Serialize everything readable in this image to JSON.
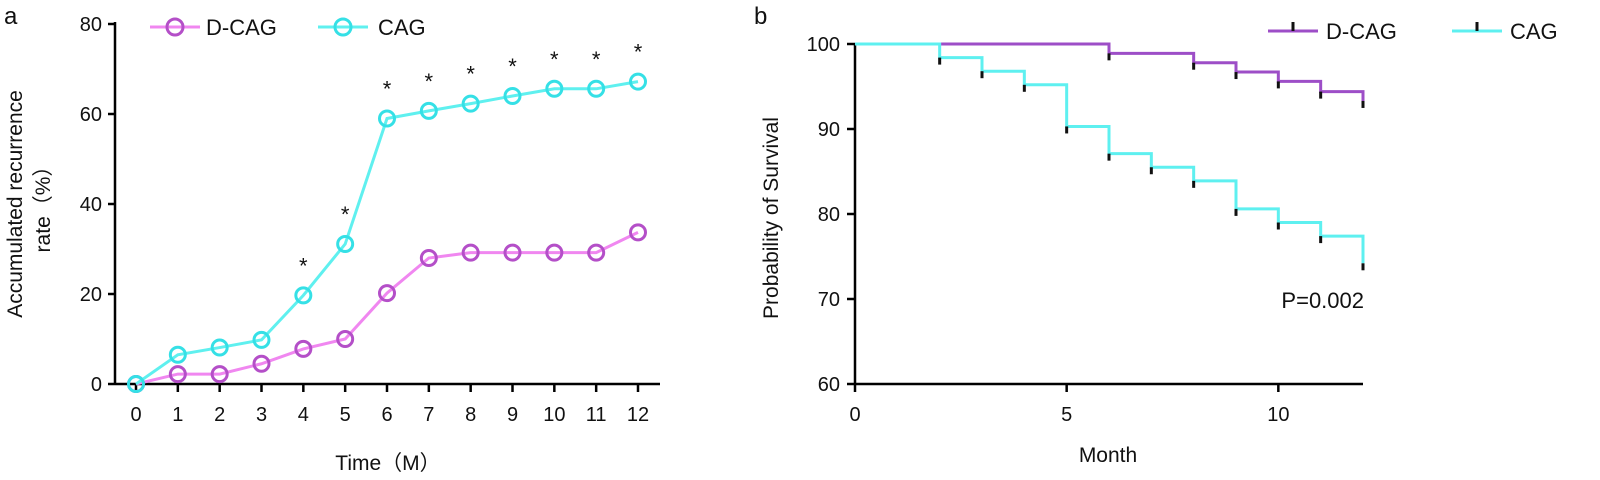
{
  "chart_data": [
    {
      "panel": "a",
      "type": "line",
      "title": "",
      "xlabel": "Time（M）",
      "ylabel_lines": [
        "Accumulated recurrence",
        "rate（%）"
      ],
      "xlim": [
        0,
        12
      ],
      "ylim": [
        0,
        80
      ],
      "xticks": [
        "0",
        "1",
        "2",
        "3",
        "4",
        "5",
        "6",
        "7",
        "8",
        "9",
        "10",
        "11",
        "12"
      ],
      "yticks": [
        "0",
        "20",
        "40",
        "60",
        "80"
      ],
      "grid": false,
      "legend_position": "top",
      "x": [
        0,
        1,
        2,
        3,
        4,
        5,
        6,
        7,
        8,
        9,
        10,
        11,
        12
      ],
      "series": [
        {
          "name": "D-CAG",
          "color": "#f087f0",
          "marker_color": "#b44fc8",
          "values": [
            0,
            2.2,
            2.2,
            4.5,
            7.8,
            10,
            20.2,
            28,
            29.2,
            29.2,
            29.2,
            29.2,
            33.7
          ]
        },
        {
          "name": "CAG",
          "color": "#5ff0ef",
          "marker_color": "#35e0e6",
          "values": [
            0,
            6.5,
            8.1,
            9.8,
            19.7,
            31.1,
            59.0,
            60.7,
            62.3,
            64.0,
            65.6,
            65.6,
            67.2
          ]
        }
      ],
      "annotations": [
        {
          "text": "*",
          "x": 4
        },
        {
          "text": "*",
          "x": 5
        },
        {
          "text": "*",
          "x": 6
        },
        {
          "text": "*",
          "x": 7
        },
        {
          "text": "*",
          "x": 8
        },
        {
          "text": "*",
          "x": 9
        },
        {
          "text": "*",
          "x": 10
        },
        {
          "text": "*",
          "x": 11
        },
        {
          "text": "*",
          "x": 12
        }
      ]
    },
    {
      "panel": "b",
      "type": "line",
      "title": "",
      "xlabel": "Month",
      "ylabel": "Probability of Survival",
      "xlim": [
        0,
        12
      ],
      "ylim": [
        60,
        100
      ],
      "xticks": [
        0,
        5,
        10
      ],
      "xtick_labels": [
        "0",
        "5",
        "10"
      ],
      "yticks": [
        60,
        70,
        80,
        90,
        100
      ],
      "ytick_labels": [
        "60",
        "70",
        "80",
        "90",
        "100"
      ],
      "grid": false,
      "legend_position": "top-right",
      "series": [
        {
          "name": "D-CAG",
          "color": "#9d4ec7",
          "steps": [
            [
              0,
              100
            ],
            [
              6,
              98.9
            ],
            [
              8,
              97.8
            ],
            [
              9,
              96.7
            ],
            [
              10,
              95.6
            ],
            [
              11,
              94.4
            ],
            [
              12,
              93.3
            ]
          ],
          "censor": [
            6,
            8,
            9,
            10,
            11,
            12
          ]
        },
        {
          "name": "CAG",
          "color": "#5ef0f0",
          "steps": [
            [
              0,
              100
            ],
            [
              2,
              98.4
            ],
            [
              3,
              96.8
            ],
            [
              4,
              95.2
            ],
            [
              5,
              90.3
            ],
            [
              6,
              87.1
            ],
            [
              7,
              85.5
            ],
            [
              8,
              83.9
            ],
            [
              9,
              80.6
            ],
            [
              10,
              79.0
            ],
            [
              11,
              77.4
            ],
            [
              12,
              74.2
            ]
          ],
          "censor": [
            2,
            3,
            4,
            5,
            6,
            7,
            8,
            9,
            10,
            11,
            12
          ]
        }
      ],
      "annotation": "P=0.002"
    }
  ]
}
